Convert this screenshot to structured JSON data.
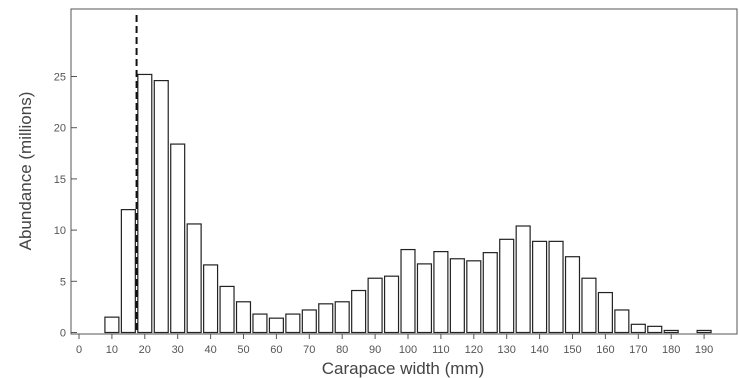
{
  "chart_data": {
    "type": "bar",
    "title": "",
    "xlabel": "Carapace width (mm)",
    "ylabel": "Abundance (millions)",
    "xlim": [
      0,
      195
    ],
    "ylim": [
      0,
      31
    ],
    "xticks": [
      "0",
      "10",
      "20",
      "30",
      "40",
      "50",
      "60",
      "70",
      "80",
      "90",
      "100",
      "110",
      "120",
      "130",
      "140",
      "150",
      "160",
      "170",
      "180",
      "190"
    ],
    "yticks": [
      "0",
      "5",
      "10",
      "15",
      "20",
      "25"
    ],
    "bar_width": 5,
    "x": [
      10,
      15,
      20,
      25,
      30,
      35,
      40,
      45,
      50,
      55,
      60,
      65,
      70,
      75,
      80,
      85,
      90,
      95,
      100,
      105,
      110,
      115,
      120,
      125,
      130,
      135,
      140,
      145,
      150,
      155,
      160,
      165,
      170,
      175,
      180,
      190
    ],
    "values": [
      1.5,
      12,
      25.2,
      24.6,
      18.4,
      10.6,
      6.6,
      4.5,
      3.0,
      1.8,
      1.4,
      1.8,
      2.2,
      2.8,
      3.0,
      4.1,
      5.3,
      5.5,
      8.1,
      6.7,
      7.9,
      7.2,
      7.0,
      7.8,
      9.1,
      10.4,
      8.9,
      8.9,
      7.4,
      5.3,
      3.9,
      2.2,
      0.8,
      0.6,
      0.2,
      0.2
    ],
    "reference_line": {
      "x": 17.5,
      "style": "dashed"
    },
    "grid": false,
    "colors": {
      "bar_fill": "#ffffff",
      "bar_stroke": "#222222",
      "axis": "#555555",
      "reference_line": "#111111"
    }
  }
}
